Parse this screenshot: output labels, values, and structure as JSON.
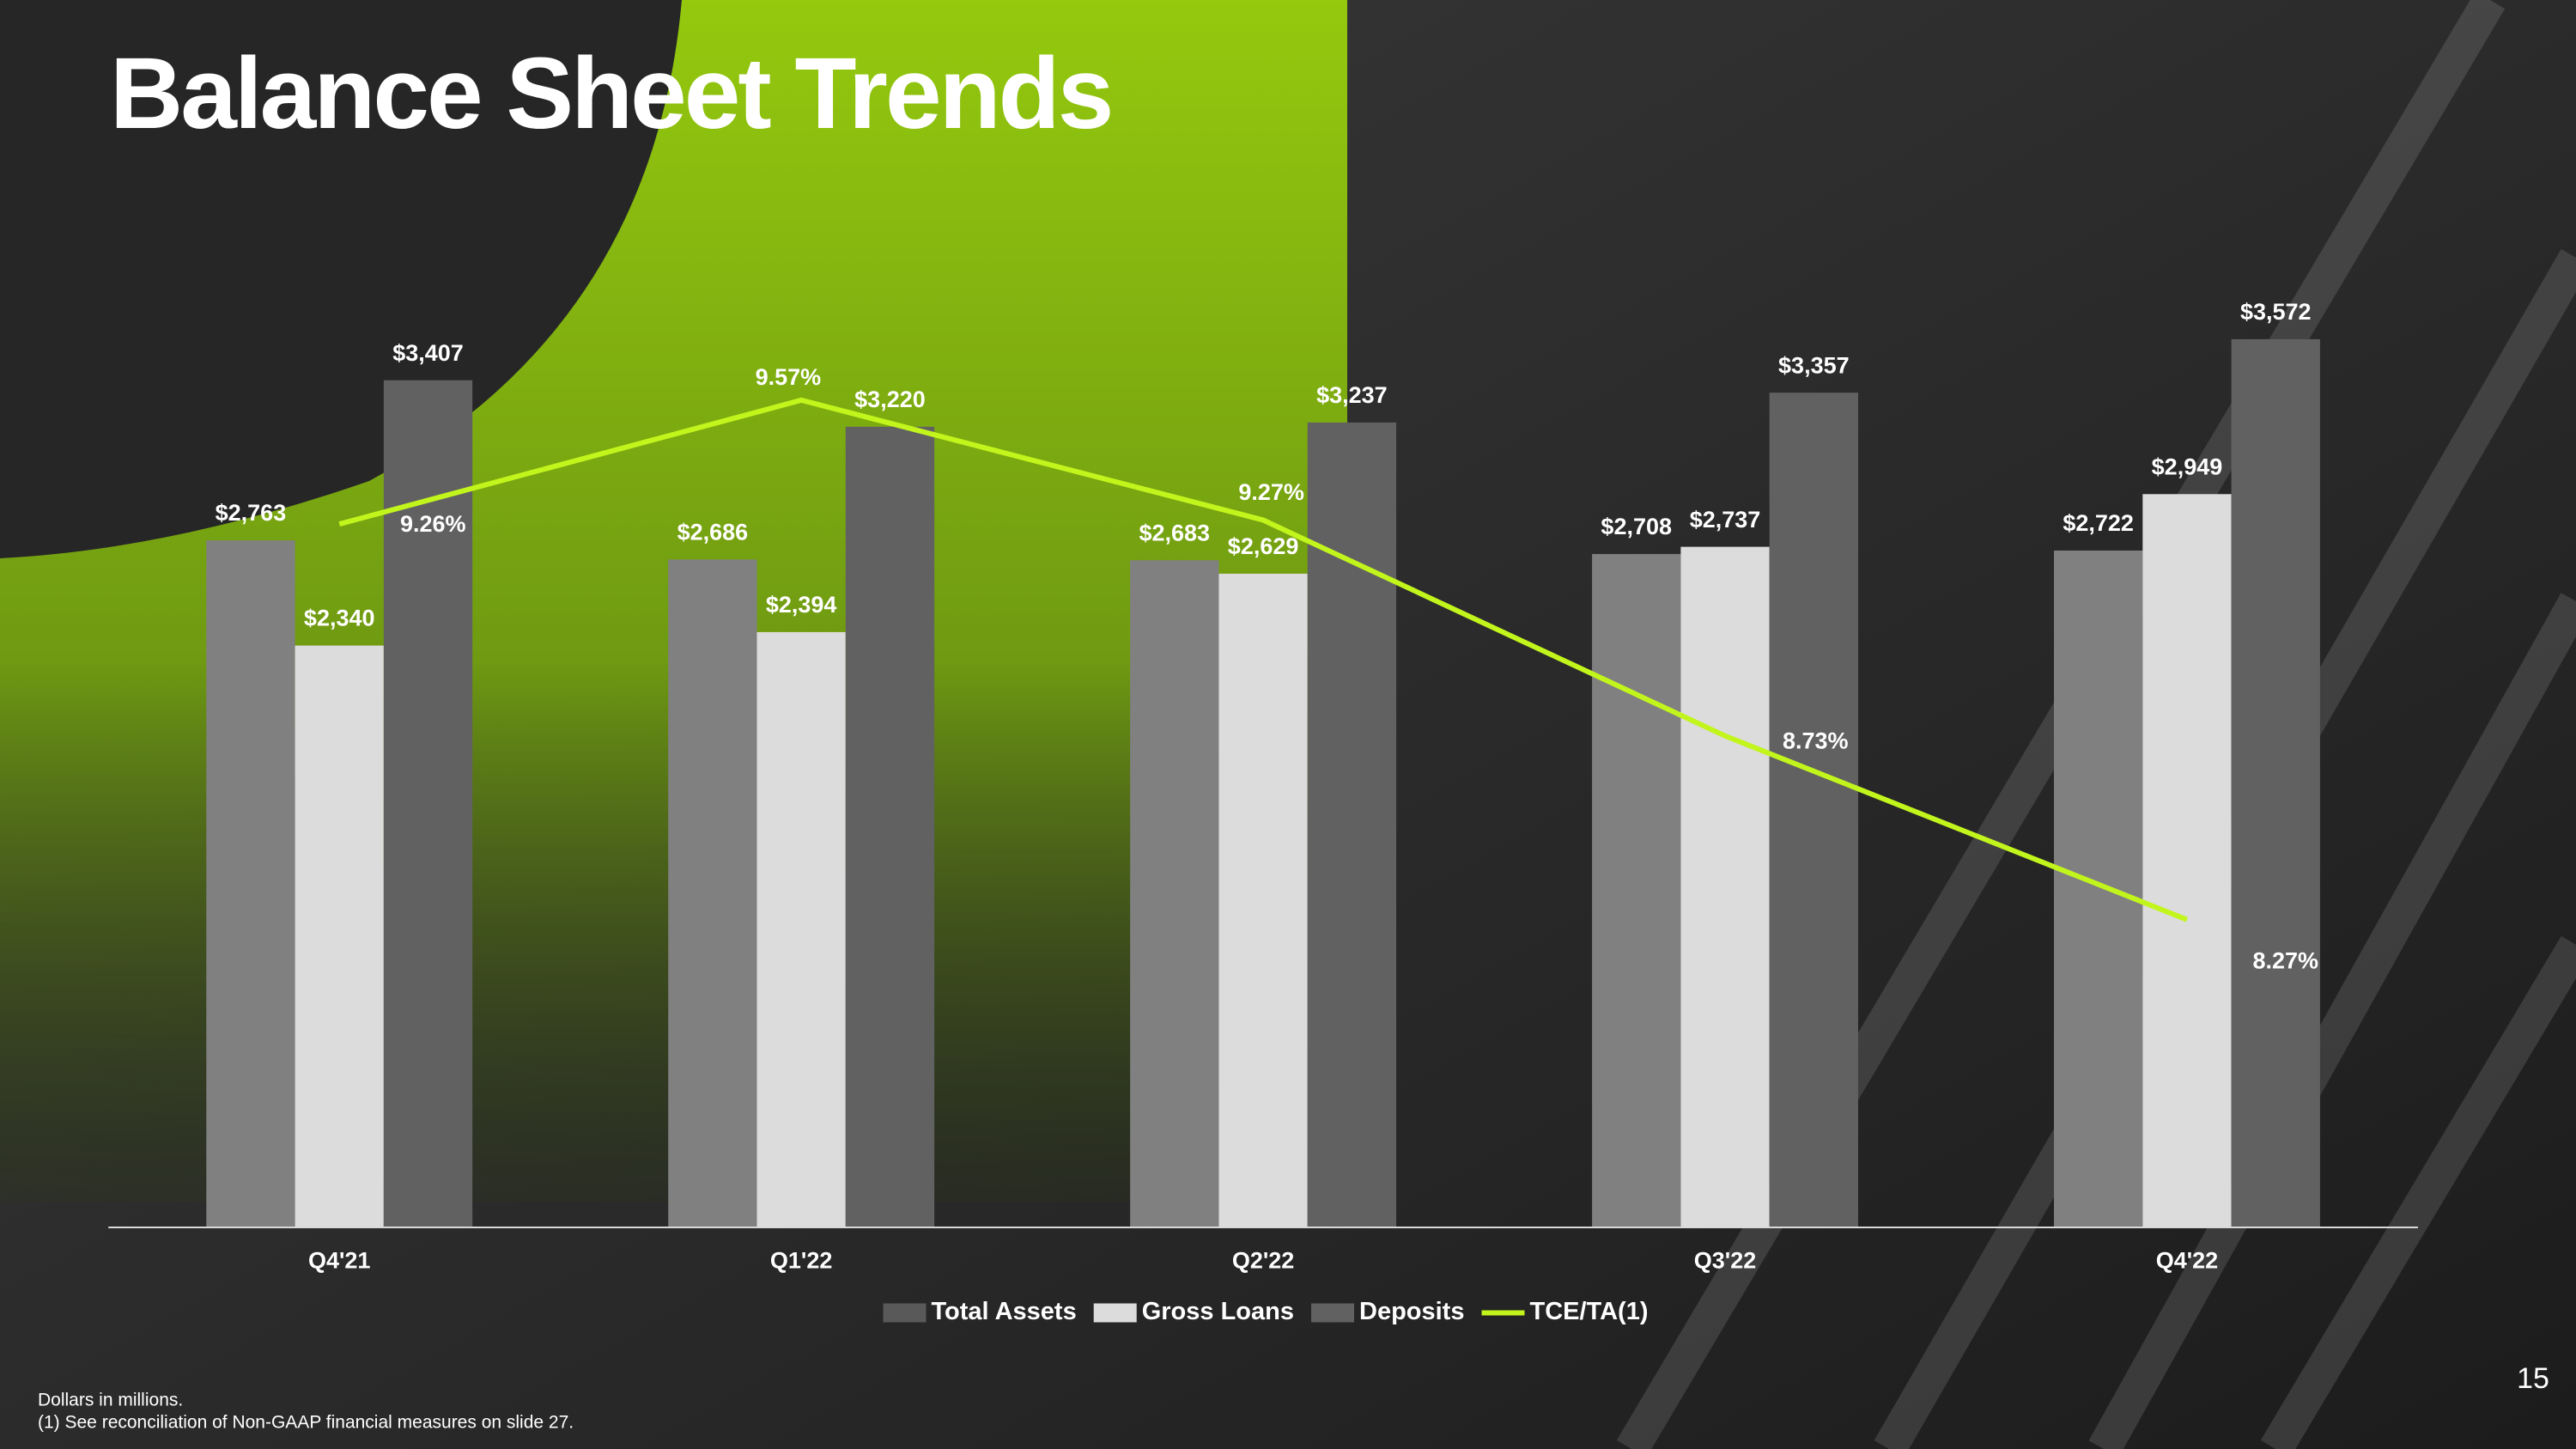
{
  "chart_data": {
    "type": "bar",
    "title": "Balance Sheet Trends",
    "categories": [
      "Q4'21",
      "Q1'22",
      "Q2'22",
      "Q3'22",
      "Q4'22"
    ],
    "series": [
      {
        "name": "Total Assets",
        "color": "#808080",
        "values": [
          2763,
          2686,
          2683,
          2708,
          2722
        ],
        "value_labels": [
          "$2,763",
          "$2,686",
          "$2,683",
          "$2,708",
          "$2,722"
        ]
      },
      {
        "name": "Gross Loans",
        "color": "#dcdcdc",
        "values": [
          2340,
          2394,
          2629,
          2737,
          2949
        ],
        "value_labels": [
          "$2,340",
          "$2,394",
          "$2,629",
          "$2,737",
          "$2,949"
        ]
      },
      {
        "name": "Deposits",
        "color": "#616161",
        "values": [
          3407,
          3220,
          3237,
          3357,
          3572
        ],
        "value_labels": [
          "$3,407",
          "$3,220",
          "$3,237",
          "$3,357",
          "$3,572"
        ]
      },
      {
        "name": "TCE/TA(1)",
        "type": "line",
        "axis": "y2",
        "color": "#c2f51c",
        "values": [
          9.26,
          9.57,
          9.27,
          8.73,
          8.27
        ],
        "value_labels": [
          "9.26%",
          "9.57%",
          "9.27%",
          "8.73%",
          "8.27%"
        ]
      }
    ],
    "ylim": [
      0,
      4500
    ],
    "y2lim": [
      7.5,
      10.3
    ],
    "legend": "bottom"
  },
  "footnotes": [
    "Dollars in millions.",
    "(1) See reconciliation of Non-GAAP financial measures on slide 27."
  ],
  "page_number": "15"
}
